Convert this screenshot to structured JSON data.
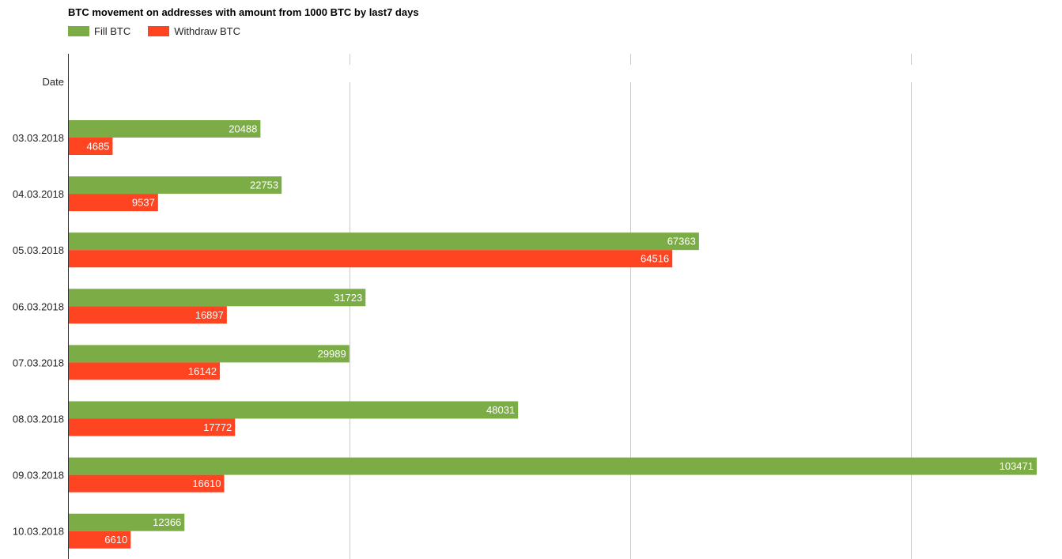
{
  "chart_data": {
    "type": "bar",
    "orientation": "horizontal",
    "title": "BTC movement on addresses with amount from 1000 BTC by last7 days",
    "category_axis_label": "Date",
    "categories": [
      "03.03.2018",
      "04.03.2018",
      "05.03.2018",
      "06.03.2018",
      "07.03.2018",
      "08.03.2018",
      "09.03.2018",
      "10.03.2018"
    ],
    "series": [
      {
        "name": "Fill BTC",
        "color": "#7cac45",
        "values": [
          20488,
          22753,
          67363,
          31723,
          29989,
          48031,
          103471,
          12366
        ]
      },
      {
        "name": "Withdraw BTC",
        "color": "#ff4421",
        "values": [
          4685,
          9537,
          64516,
          16897,
          16142,
          17772,
          16610,
          6610
        ]
      }
    ],
    "xlim": [
      0,
      103471
    ],
    "gridlines": [
      30000,
      60000,
      90000
    ],
    "grid": true,
    "data_labels": true,
    "legend_position": "top-left"
  }
}
